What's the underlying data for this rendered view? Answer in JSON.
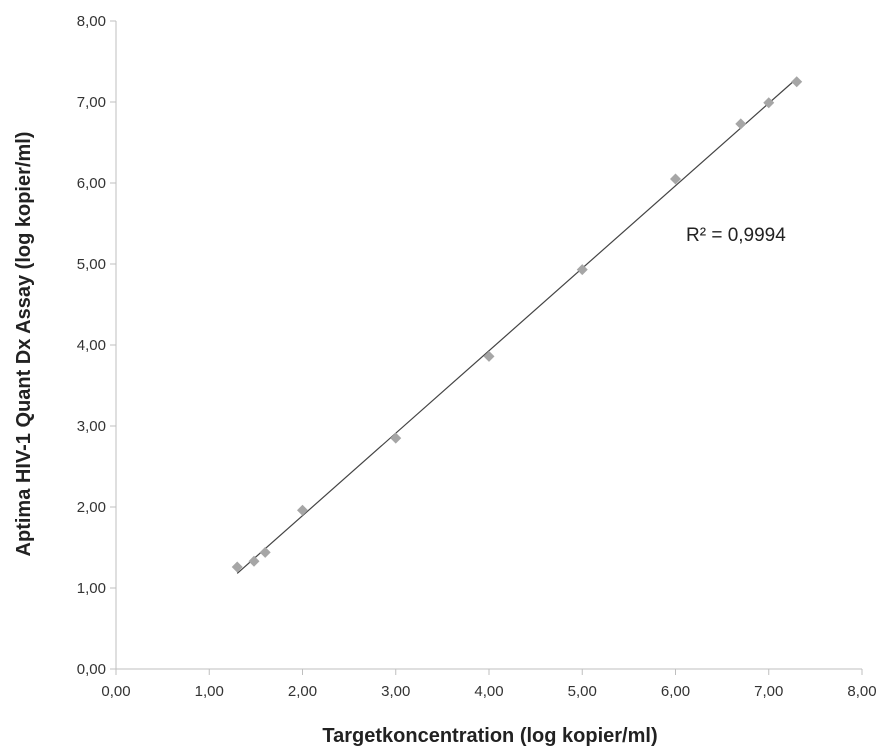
{
  "chart_data": {
    "type": "scatter",
    "xlabel": "Targetkoncentration (log kopier/ml)",
    "ylabel": "Aptima HIV-1 Quant Dx Assay (log kopier/ml)",
    "xlim": [
      0,
      8
    ],
    "ylim": [
      0,
      8
    ],
    "xticks": [
      "0,00",
      "1,00",
      "2,00",
      "3,00",
      "4,00",
      "5,00",
      "6,00",
      "7,00",
      "8,00"
    ],
    "yticks": [
      "0,00",
      "1,00",
      "2,00",
      "3,00",
      "4,00",
      "5,00",
      "6,00",
      "7,00",
      "8,00"
    ],
    "grid": false,
    "points": [
      {
        "x": 1.3,
        "y": 1.26
      },
      {
        "x": 1.48,
        "y": 1.33
      },
      {
        "x": 1.6,
        "y": 1.44
      },
      {
        "x": 2.0,
        "y": 1.96
      },
      {
        "x": 3.0,
        "y": 2.85
      },
      {
        "x": 4.0,
        "y": 3.86
      },
      {
        "x": 5.0,
        "y": 4.93
      },
      {
        "x": 6.0,
        "y": 6.05
      },
      {
        "x": 6.7,
        "y": 6.73
      },
      {
        "x": 7.0,
        "y": 6.99
      },
      {
        "x": 7.3,
        "y": 7.25
      }
    ],
    "trendline": {
      "x_start": 1.3,
      "y_start": 1.18,
      "x_end": 7.3,
      "y_end": 7.29
    },
    "annotation": "R² = 0,9994",
    "marker_color": "#a6a6a6",
    "line_color": "#444444"
  }
}
